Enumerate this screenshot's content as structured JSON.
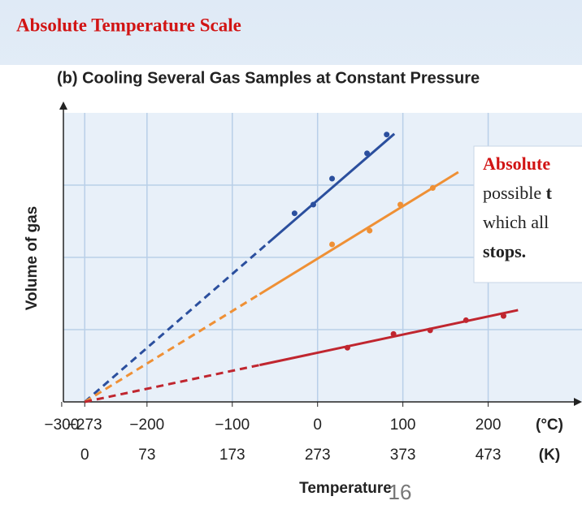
{
  "slide_title": "Absolute Temperature Scale",
  "chart_data": {
    "type": "scatter",
    "title": "(b) Cooling Several Gas Samples at Constant Pressure",
    "x_label": "Temperature",
    "y_label": "Volume of gas",
    "x_unit": "(°C)",
    "x2_unit": "(K)",
    "xlim": [
      -298,
      310
    ],
    "ylim": [
      0,
      4
    ],
    "xticks": [
      {
        "value": -300,
        "label": "−300"
      },
      {
        "value": -273,
        "label": "−273"
      },
      {
        "value": -200,
        "label": "−200"
      },
      {
        "value": -100,
        "label": "−100"
      },
      0,
      100,
      200
    ],
    "x2lim": [
      -25,
      583
    ],
    "x2ticks": [
      0,
      73,
      173,
      273,
      373,
      473
    ],
    "yticks": [
      1,
      2,
      3
    ],
    "grid": true,
    "series": [
      {
        "color": "#2b4f9e",
        "x": [
          -27,
          -5,
          17,
          58,
          81
        ],
        "values": [
          2.61,
          2.73,
          3.09,
          3.44,
          3.7
        ],
        "fit": {
          "x": [
            -273,
            -58,
            90
          ],
          "values": [
            0,
            2.2,
            3.71
          ]
        }
      },
      {
        "color": "#ef9035",
        "x": [
          17,
          61,
          97,
          135
        ],
        "values": [
          2.18,
          2.37,
          2.73,
          2.96
        ],
        "fit": {
          "x": [
            -273,
            -68,
            165
          ],
          "values": [
            0,
            1.49,
            3.18
          ]
        }
      },
      {
        "color": "#c0262f",
        "x": [
          35,
          89,
          132,
          174,
          218
        ],
        "values": [
          0.75,
          0.94,
          0.99,
          1.13,
          1.19
        ],
        "fit": {
          "x": [
            -273,
            -68,
            235
          ],
          "values": [
            0,
            0.51,
            1.27
          ]
        }
      }
    ]
  },
  "callout": {
    "lines": [
      [
        "Absolute"
      ],
      [
        "possible ",
        "t"
      ],
      [
        "which all"
      ],
      [
        "stops."
      ]
    ]
  },
  "slide_number": "16"
}
